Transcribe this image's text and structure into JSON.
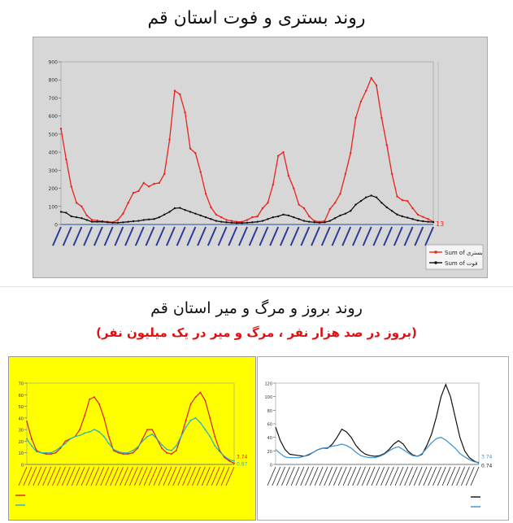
{
  "titles": {
    "top": "روند بستری و فوت استان قم",
    "bottom": "روند بروز و مرگ و میر استان قم",
    "bottom_sub": "(بروز در صد هزار نفر ، مرگ و میر در یک میلیون نفر)"
  },
  "chart_data": [
    {
      "type": "line",
      "ylim": [
        0,
        900
      ],
      "yticks": [
        0,
        100,
        200,
        300,
        400,
        500,
        600,
        700,
        800,
        900
      ],
      "series": [
        {
          "name": "Sum of بستری",
          "color": "#e8231d",
          "values": [
            530,
            360,
            210,
            120,
            100,
            50,
            25,
            22,
            18,
            15,
            12,
            25,
            60,
            120,
            175,
            185,
            230,
            210,
            225,
            230,
            280,
            470,
            740,
            720,
            620,
            420,
            395,
            290,
            170,
            95,
            55,
            40,
            25,
            20,
            15,
            15,
            25,
            40,
            45,
            90,
            120,
            220,
            380,
            400,
            270,
            200,
            110,
            90,
            45,
            20,
            15,
            20,
            85,
            120,
            170,
            280,
            395,
            590,
            680,
            740,
            810,
            770,
            590,
            440,
            280,
            155,
            135,
            130,
            90,
            55,
            42,
            30,
            15
          ]
        },
        {
          "name": "Sum of فوت",
          "color": "#111111",
          "values": [
            70,
            65,
            45,
            40,
            35,
            25,
            15,
            15,
            15,
            12,
            10,
            10,
            12,
            15,
            18,
            20,
            25,
            28,
            30,
            40,
            55,
            70,
            90,
            92,
            80,
            70,
            60,
            50,
            40,
            30,
            20,
            15,
            12,
            10,
            8,
            8,
            10,
            12,
            15,
            20,
            30,
            40,
            45,
            55,
            50,
            40,
            30,
            20,
            15,
            12,
            10,
            12,
            20,
            35,
            50,
            60,
            75,
            110,
            130,
            150,
            160,
            150,
            120,
            95,
            75,
            55,
            45,
            38,
            30,
            22,
            18,
            15,
            13
          ]
        }
      ],
      "end_label": "13"
    },
    {
      "type": "line",
      "ylim": [
        0,
        70
      ],
      "yticks": [
        0,
        10,
        20,
        30,
        40,
        50,
        60,
        70
      ],
      "series": [
        {
          "name": "",
          "color": "#d91f1f",
          "values": [
            37,
            22,
            12,
            10,
            9,
            9,
            10,
            14,
            20,
            22,
            24,
            30,
            42,
            56,
            58,
            52,
            40,
            24,
            12,
            10,
            9,
            9,
            10,
            14,
            22,
            30,
            30,
            22,
            14,
            10,
            9,
            12,
            24,
            38,
            52,
            58,
            62,
            55,
            40,
            24,
            12,
            6,
            3,
            1
          ]
        },
        {
          "name": "",
          "color": "#21b0c8",
          "values": [
            22,
            16,
            11,
            10,
            10,
            10,
            12,
            15,
            18,
            22,
            24,
            25,
            27,
            28,
            30,
            28,
            24,
            18,
            13,
            11,
            10,
            10,
            12,
            15,
            20,
            24,
            26,
            22,
            17,
            13,
            12,
            16,
            24,
            32,
            38,
            40,
            36,
            30,
            24,
            16,
            11,
            7,
            4,
            3
          ]
        }
      ],
      "end_labels": [
        "3.74",
        "0.97"
      ]
    },
    {
      "type": "line",
      "ylim": [
        0,
        120
      ],
      "yticks": [
        0,
        20,
        40,
        60,
        80,
        100,
        120
      ],
      "series": [
        {
          "name": "",
          "color": "#111111",
          "values": [
            55,
            35,
            22,
            15,
            14,
            13,
            12,
            14,
            18,
            22,
            24,
            24,
            30,
            40,
            52,
            48,
            40,
            28,
            20,
            15,
            13,
            12,
            13,
            16,
            22,
            30,
            35,
            30,
            20,
            14,
            12,
            15,
            28,
            45,
            70,
            100,
            118,
            100,
            70,
            40,
            20,
            10,
            5,
            2
          ]
        },
        {
          "name": "",
          "color": "#3a8fd0",
          "values": [
            22,
            16,
            11,
            10,
            10,
            10,
            12,
            15,
            18,
            22,
            24,
            25,
            27,
            28,
            30,
            28,
            24,
            18,
            13,
            11,
            10,
            10,
            12,
            15,
            20,
            24,
            26,
            22,
            17,
            13,
            12,
            16,
            24,
            32,
            38,
            40,
            36,
            30,
            24,
            16,
            11,
            7,
            4,
            3
          ]
        }
      ],
      "end_labels": [
        "3.74",
        "0.74"
      ]
    }
  ]
}
